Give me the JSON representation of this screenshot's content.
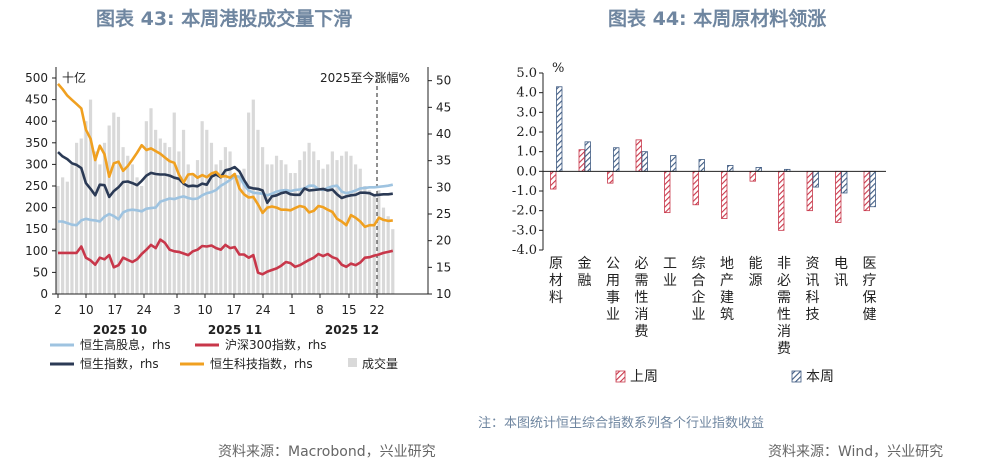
{
  "figures": {
    "left_title": "图表 43: 本周港股成交量下滑",
    "right_title": "图表 44: 本周原材料领涨",
    "left_source": "资料来源：Macrobond，兴业研究",
    "right_source": "资料来源：Wind，兴业研究",
    "right_note": "注：本图统计恒生综合指数系列各个行业指数收益"
  },
  "colors": {
    "hs_high_div": "#9ec3e0",
    "csi300": "#c8374a",
    "hsi": "#2b3a55",
    "hstech": "#f0a020",
    "volume": "#d9d9d9",
    "last_week": "#c8374a",
    "this_week": "#3f5b82"
  },
  "chart_data": [
    {
      "type": "line",
      "left_unit": "十亿",
      "annotation": "2025至今涨幅%",
      "x_tick_labels": [
        "2",
        "10",
        "17",
        "24",
        "3",
        "10",
        "17",
        "24",
        "1",
        "8",
        "15",
        "22"
      ],
      "month_labels": [
        "2025 10",
        "2025 11",
        "2025 12"
      ],
      "y_left": {
        "min": 0,
        "max": 500,
        "ticks": [
          0,
          50,
          100,
          150,
          200,
          250,
          300,
          350,
          400,
          450,
          500
        ]
      },
      "y_right": {
        "min": 10,
        "max": 52,
        "ticks": [
          10,
          15,
          20,
          25,
          30,
          35,
          40,
          45,
          50
        ]
      },
      "dates_start": "2025-10-02",
      "series": [
        {
          "name": "恒生高股息，rhs",
          "axis": "right",
          "color_key": "hs_high_div",
          "values": [
            23.6,
            23.6,
            23.3,
            23.0,
            22.9,
            23.8,
            24.1,
            23.9,
            23.8,
            23.6,
            24.5,
            25.0,
            24.6,
            24.0,
            25.3,
            25.7,
            25.8,
            25.7,
            25.5,
            26.0,
            26.1,
            26.2,
            27.3,
            27.6,
            27.9,
            27.8,
            28.1,
            28.3,
            28.0,
            27.8,
            27.9,
            28.5,
            28.9,
            29.1,
            29.5,
            30.3,
            30.8,
            31.4,
            32.1,
            32.0,
            30.5,
            29.4,
            29.0,
            28.9,
            28.8,
            28.5,
            28.8,
            29.2,
            29.4,
            29.5,
            29.3,
            29.5,
            29.6,
            29.8,
            30.3,
            30.3,
            29.7,
            29.5,
            29.9,
            30.2,
            30.3,
            29.2,
            28.9,
            29.1,
            29.4,
            29.8,
            29.9,
            30.0,
            30.0,
            30.1,
            30.2,
            30.3,
            30.5
          ]
        },
        {
          "name": "沪深300指数，rhs",
          "axis": "right",
          "color_key": "csi300",
          "values": [
            17.7,
            17.7,
            17.7,
            17.7,
            17.7,
            18.9,
            16.8,
            16.3,
            15.5,
            16.8,
            16.5,
            17.3,
            15.0,
            15.4,
            16.8,
            16.4,
            16.0,
            16.5,
            17.5,
            18.3,
            19.2,
            18.6,
            20.2,
            19.6,
            18.3,
            18.0,
            17.9,
            17.6,
            17.3,
            18.0,
            18.3,
            19.0,
            18.9,
            19.1,
            18.6,
            18.3,
            19.2,
            18.6,
            18.8,
            17.4,
            17.4,
            16.8,
            17.3,
            14.0,
            13.7,
            14.2,
            14.5,
            14.8,
            15.3,
            16.0,
            15.8,
            15.1,
            15.4,
            15.9,
            16.4,
            16.8,
            17.5,
            17.1,
            17.5,
            16.9,
            16.6,
            15.5,
            15.1,
            15.7,
            15.4,
            15.9,
            16.8,
            16.9,
            17.2,
            17.4,
            17.7,
            17.9,
            18.1
          ]
        },
        {
          "name": "恒生指数，rhs",
          "axis": "right",
          "color_key": "hsi",
          "values": [
            36.6,
            35.8,
            35.3,
            34.5,
            34.2,
            33.6,
            30.8,
            29.7,
            28.5,
            30.5,
            30.4,
            28.2,
            29.3,
            30.0,
            31.0,
            31.1,
            30.8,
            30.4,
            31.2,
            32.2,
            32.7,
            32.5,
            32.4,
            32.4,
            32.2,
            31.8,
            31.6,
            30.7,
            30.2,
            30.3,
            30.2,
            30.7,
            30.5,
            32.0,
            32.4,
            31.9,
            33.2,
            33.4,
            33.8,
            33.0,
            31.4,
            30.0,
            29.8,
            29.7,
            29.4,
            27.1,
            28.3,
            28.5,
            28.9,
            29.1,
            28.7,
            28.6,
            28.6,
            29.8,
            29.4,
            29.5,
            29.6,
            29.7,
            29.4,
            29.6,
            28.7,
            28.0,
            28.3,
            28.5,
            28.6,
            29.0,
            29.0,
            28.9,
            28.5,
            28.6,
            28.7,
            28.7,
            28.8
          ]
        },
        {
          "name": "恒生科技指数，rhs",
          "axis": "right",
          "color_key": "hstech",
          "values": [
            49.4,
            48.4,
            47.2,
            46.4,
            45.6,
            44.8,
            40.8,
            39.1,
            35.1,
            37.8,
            36.2,
            32.0,
            34.5,
            34.8,
            33.1,
            34.0,
            35.2,
            36.5,
            37.9,
            37.0,
            37.3,
            36.8,
            36.3,
            35.6,
            34.9,
            34.6,
            32.4,
            30.9,
            32.4,
            32.5,
            31.8,
            32.3,
            31.9,
            32.6,
            32.9,
            32.0,
            32.1,
            31.8,
            32.5,
            29.8,
            28.7,
            28.1,
            28.2,
            26.8,
            25.2,
            26.2,
            26.4,
            26.2,
            25.8,
            25.8,
            25.7,
            26.1,
            26.5,
            26.3,
            25.3,
            25.6,
            26.5,
            26.3,
            25.8,
            25.4,
            24.1,
            23.6,
            22.9,
            24.8,
            24.3,
            23.6,
            22.6,
            22.9,
            22.9,
            24.3,
            23.9,
            23.7,
            23.8
          ]
        },
        {
          "name": "成交量",
          "axis": "left",
          "color_key": "volume",
          "values": [
            250,
            270,
            260,
            300,
            350,
            360,
            400,
            450,
            330,
            300,
            350,
            390,
            420,
            410,
            340,
            320,
            300,
            270,
            250,
            400,
            430,
            380,
            360,
            350,
            340,
            420,
            330,
            380,
            300,
            280,
            310,
            400,
            380,
            350,
            300,
            310,
            340,
            330,
            280,
            270,
            290,
            420,
            450,
            380,
            340,
            300,
            300,
            320,
            310,
            300,
            280,
            280,
            310,
            330,
            350,
            330,
            310,
            290,
            300,
            330,
            310,
            320,
            330,
            320,
            300,
            290,
            250,
            240,
            230,
            240,
            200,
            180,
            150
          ]
        }
      ]
    },
    {
      "type": "bar",
      "unit": "%",
      "categories": [
        "原材料",
        "金融",
        "公用事业",
        "必需性消费",
        "工业",
        "综合企业",
        "地产建筑",
        "能源",
        "非必需性消费",
        "资讯科技",
        "电讯",
        "医疗保健"
      ],
      "y": {
        "min": -4.0,
        "max": 5.0,
        "ticks": [
          -4.0,
          -3.0,
          -2.0,
          -1.0,
          0.0,
          1.0,
          2.0,
          3.0,
          4.0,
          5.0
        ]
      },
      "series": [
        {
          "name": "上周",
          "color_key": "last_week",
          "values": [
            -0.9,
            1.1,
            -0.6,
            1.6,
            -2.1,
            -1.7,
            -2.4,
            -0.5,
            -3.0,
            -2.0,
            -2.6,
            -2.0
          ]
        },
        {
          "name": "本周",
          "color_key": "this_week",
          "values": [
            4.3,
            1.5,
            1.2,
            1.0,
            0.8,
            0.6,
            0.3,
            0.2,
            0.1,
            -0.8,
            -1.1,
            -1.8
          ]
        }
      ]
    }
  ]
}
